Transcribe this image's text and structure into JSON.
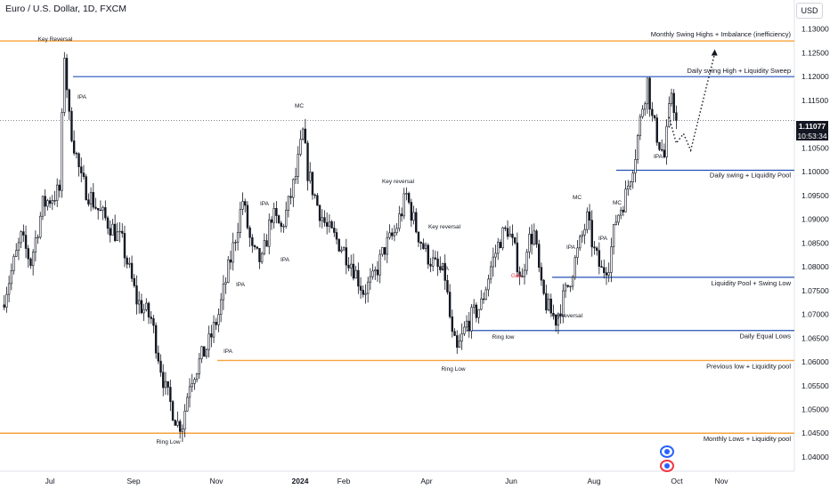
{
  "header": {
    "title": "Euro / U.S. Dollar, 1D, FXCM",
    "currency": "USD"
  },
  "price_tag": {
    "price": "1.11077",
    "countdown": "10:53:34"
  },
  "colors": {
    "up": "#131722",
    "down": "#131722",
    "key_level": "#f7a23d",
    "swing_level": "#2251b8",
    "axis_text": "#131722",
    "background": "#ffffff",
    "gap_label": "#f23645",
    "badge_blue": "#2962ff",
    "badge_red": "#f23645"
  },
  "chart_data": {
    "type": "candlestick",
    "symbol": "Euro / U.S. Dollar, 1D, FXCM",
    "price_axis": {
      "ylim": [
        1.0385,
        1.1335
      ],
      "ticks": [
        "1.13000",
        "1.12500",
        "1.12000",
        "1.11500",
        "1.11000",
        "1.10500",
        "1.10000",
        "1.09500",
        "1.09000",
        "1.08500",
        "1.08000",
        "1.07500",
        "1.07000",
        "1.06500",
        "1.06000",
        "1.05500",
        "1.05000",
        "1.04500",
        "1.04000"
      ]
    },
    "time_axis": {
      "labels": [
        "Jul",
        "Sep",
        "Nov",
        "2024",
        "Feb",
        "Apr",
        "Jun",
        "Aug",
        "Oct",
        "Nov"
      ]
    },
    "current_price": 1.11077,
    "horizontal_levels": [
      {
        "price": 1.1275,
        "kind": "key",
        "label": "Monthly Swing Highs + Imbalance (inefficiency)"
      },
      {
        "price": 1.12,
        "kind": "swing",
        "label": "Daily swing High + Liquidity Sweep"
      },
      {
        "price": 1.1003,
        "kind": "swing",
        "label": "Daily swing + Liquidity Pool"
      },
      {
        "price": 1.0778,
        "kind": "swing",
        "label": "Liquidity Pool + Swing Low"
      },
      {
        "price": 1.0666,
        "kind": "swing",
        "label": "Daily Equal Lows"
      },
      {
        "price": 1.0603,
        "kind": "key",
        "label": "Previous low + Liquidity pool"
      },
      {
        "price": 1.045,
        "kind": "key",
        "label": "Monthly Lows + Liquidity pool"
      }
    ],
    "annotations": [
      "Key Reversal",
      "IPA",
      "MC",
      "IPA",
      "IPA",
      "IPA",
      "IPA",
      "Key reversal",
      "Key reversal",
      "IPA",
      "Ring low",
      "Ring Low",
      "Ring Low",
      "Gap",
      "Key reversal",
      "MC",
      "MC",
      "IPA",
      "IPA",
      "IPA"
    ],
    "projection_path": [
      {
        "t": 277,
        "price": 1.1115
      },
      {
        "t": 280,
        "price": 1.106
      },
      {
        "t": 283,
        "price": 1.108
      },
      {
        "t": 286,
        "price": 1.1045
      },
      {
        "t": 296,
        "price": 1.125
      }
    ],
    "candle_waypoints": [
      [
        0,
        1.072
      ],
      [
        8,
        1.086
      ],
      [
        12,
        1.081
      ],
      [
        17,
        1.093
      ],
      [
        24,
        1.096
      ],
      [
        26,
        1.125
      ],
      [
        28,
        1.111
      ],
      [
        33,
        1.098
      ],
      [
        40,
        1.092
      ],
      [
        46,
        1.088
      ],
      [
        50,
        1.085
      ],
      [
        56,
        1.073
      ],
      [
        62,
        1.069
      ],
      [
        68,
        1.054
      ],
      [
        73,
        1.047
      ],
      [
        75,
        1.047
      ],
      [
        78,
        1.056
      ],
      [
        82,
        1.06
      ],
      [
        86,
        1.064
      ],
      [
        90,
        1.07
      ],
      [
        96,
        1.084
      ],
      [
        100,
        1.094
      ],
      [
        104,
        1.083
      ],
      [
        108,
        1.081
      ],
      [
        112,
        1.091
      ],
      [
        116,
        1.088
      ],
      [
        119,
        1.093
      ],
      [
        122,
        1.099
      ],
      [
        125,
        1.108
      ],
      [
        127,
        1.1
      ],
      [
        131,
        1.093
      ],
      [
        135,
        1.088
      ],
      [
        140,
        1.085
      ],
      [
        145,
        1.081
      ],
      [
        150,
        1.075
      ],
      [
        154,
        1.077
      ],
      [
        159,
        1.084
      ],
      [
        163,
        1.087
      ],
      [
        168,
        1.095
      ],
      [
        172,
        1.088
      ],
      [
        176,
        1.083
      ],
      [
        180,
        1.08
      ],
      [
        184,
        1.078
      ],
      [
        187,
        1.065
      ],
      [
        189,
        1.062
      ],
      [
        193,
        1.068
      ],
      [
        199,
        1.072
      ],
      [
        203,
        1.08
      ],
      [
        207,
        1.086
      ],
      [
        210,
        1.088
      ],
      [
        213,
        1.083
      ],
      [
        216,
        1.077
      ],
      [
        218,
        1.085
      ],
      [
        221,
        1.087
      ],
      [
        224,
        1.075
      ],
      [
        227,
        1.071
      ],
      [
        230,
        1.069
      ],
      [
        235,
        1.076
      ],
      [
        239,
        1.083
      ],
      [
        243,
        1.09
      ],
      [
        246,
        1.083
      ],
      [
        249,
        1.079
      ],
      [
        252,
        1.081
      ],
      [
        255,
        1.09
      ],
      [
        259,
        1.095
      ],
      [
        263,
        1.104
      ],
      [
        266,
        1.114
      ],
      [
        268,
        1.119
      ],
      [
        270,
        1.111
      ],
      [
        273,
        1.106
      ],
      [
        275,
        1.103
      ],
      [
        278,
        1.117
      ],
      [
        280,
        1.111
      ]
    ],
    "x_domain": [
      0,
      322
    ],
    "grid": false,
    "legend": "none"
  }
}
